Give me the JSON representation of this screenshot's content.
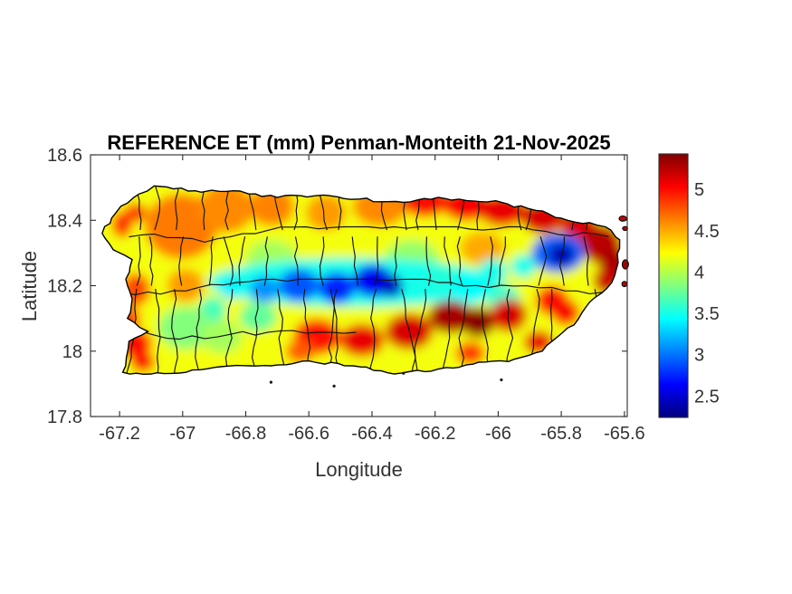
{
  "chart_data": {
    "type": "heatmap",
    "title": "REFERENCE ET (mm) Penman-Monteith 21-Nov-2025",
    "xlabel": "Longitude",
    "ylabel": "Latitude",
    "region": "Puerto Rico",
    "xlim": [
      -67.292,
      -65.591
    ],
    "ylim": [
      17.8,
      18.6
    ],
    "x_tick_values": [
      -67.2,
      -67,
      -66.8,
      -66.6,
      -66.4,
      -66.2,
      -66,
      -65.8,
      -65.6
    ],
    "x_tick_labels": [
      "-67.2",
      "-67",
      "-66.8",
      "-66.6",
      "-66.4",
      "-66.2",
      "-66",
      "-65.8",
      "-65.6"
    ],
    "y_tick_values": [
      17.8,
      18,
      18.2,
      18.4,
      18.6
    ],
    "y_tick_labels": [
      "17.8",
      "18",
      "18.2",
      "18.4",
      "18.6"
    ],
    "colorbar": {
      "colormap": "jet",
      "vmin": 2.24,
      "vmax": 5.43,
      "ticks": [
        2.5,
        3,
        3.5,
        4,
        4.5,
        5
      ],
      "tick_labels": [
        "2.5",
        "3",
        "3.5",
        "4",
        "4.5",
        "5"
      ]
    },
    "base_et": 4.2,
    "coastline": [
      [
        -67.255,
        18.36
      ],
      [
        -67.21,
        18.425
      ],
      [
        -67.155,
        18.47
      ],
      [
        -67.09,
        18.505
      ],
      [
        -66.96,
        18.49
      ],
      [
        -66.84,
        18.49
      ],
      [
        -66.7,
        18.47
      ],
      [
        -66.58,
        18.475
      ],
      [
        -66.44,
        18.465
      ],
      [
        -66.3,
        18.455
      ],
      [
        -66.19,
        18.47
      ],
      [
        -66.1,
        18.46
      ],
      [
        -65.99,
        18.455
      ],
      [
        -65.88,
        18.43
      ],
      [
        -65.78,
        18.4
      ],
      [
        -65.66,
        18.38
      ],
      [
        -65.615,
        18.34
      ],
      [
        -65.62,
        18.27
      ],
      [
        -65.64,
        18.21
      ],
      [
        -65.71,
        18.15
      ],
      [
        -65.76,
        18.08
      ],
      [
        -65.86,
        18.0
      ],
      [
        -65.95,
        17.975
      ],
      [
        -66.08,
        17.96
      ],
      [
        -66.19,
        17.945
      ],
      [
        -66.33,
        17.93
      ],
      [
        -66.46,
        17.955
      ],
      [
        -66.6,
        17.97
      ],
      [
        -66.72,
        17.955
      ],
      [
        -66.9,
        17.95
      ],
      [
        -66.99,
        17.935
      ],
      [
        -67.1,
        17.93
      ],
      [
        -67.19,
        17.935
      ],
      [
        -67.17,
        18.03
      ],
      [
        -67.11,
        18.06
      ],
      [
        -67.175,
        18.1
      ],
      [
        -67.16,
        18.16
      ],
      [
        -67.18,
        18.22
      ],
      [
        -67.16,
        18.28
      ],
      [
        -67.22,
        18.31
      ]
    ],
    "et_blobs": [
      {
        "lon": -67.005,
        "lat": 18.381,
        "rx": 0.115,
        "ry": 0.1,
        "et": 4.65
      },
      {
        "lon": -66.862,
        "lat": 18.437,
        "rx": 0.087,
        "ry": 0.075,
        "et": 4.6
      },
      {
        "lon": -66.718,
        "lat": 18.442,
        "rx": 0.072,
        "ry": 0.06,
        "et": 4.62
      },
      {
        "lon": -66.546,
        "lat": 18.423,
        "rx": 0.063,
        "ry": 0.055,
        "et": 4.55
      },
      {
        "lon": -66.374,
        "lat": 18.442,
        "rx": 0.087,
        "ry": 0.06,
        "et": 4.6
      },
      {
        "lon": -66.231,
        "lat": 18.459,
        "rx": 0.07,
        "ry": 0.05,
        "et": 5.0
      },
      {
        "lon": -66.102,
        "lat": 18.448,
        "rx": 0.075,
        "ry": 0.05,
        "et": 5.05
      },
      {
        "lon": -65.987,
        "lat": 18.431,
        "rx": 0.075,
        "ry": 0.05,
        "et": 5.1
      },
      {
        "lon": -65.858,
        "lat": 18.409,
        "rx": 0.07,
        "ry": 0.05,
        "et": 5.15
      },
      {
        "lon": -65.743,
        "lat": 18.381,
        "rx": 0.058,
        "ry": 0.05,
        "et": 5.15
      },
      {
        "lon": -65.672,
        "lat": 18.326,
        "rx": 0.063,
        "ry": 0.06,
        "et": 5.25
      },
      {
        "lon": -65.628,
        "lat": 18.257,
        "rx": 0.052,
        "ry": 0.06,
        "et": 5.3
      },
      {
        "lon": -65.657,
        "lat": 18.215,
        "rx": 0.04,
        "ry": 0.04,
        "et": 5.2
      },
      {
        "lon": -66.718,
        "lat": 18.284,
        "rx": 0.08,
        "ry": 0.055,
        "et": 3.95
      },
      {
        "lon": -66.274,
        "lat": 18.284,
        "rx": 0.085,
        "ry": 0.055,
        "et": 3.9
      },
      {
        "lon": -66.05,
        "lat": 18.315,
        "rx": 0.07,
        "ry": 0.05,
        "et": 4.5
      },
      {
        "lon": -66.46,
        "lat": 18.21,
        "rx": 0.46,
        "ry": 0.075,
        "et": 3.5
      },
      {
        "lon": -66.174,
        "lat": 18.229,
        "rx": 0.05,
        "ry": 0.04,
        "et": 3.55
      },
      {
        "lon": -66.088,
        "lat": 18.193,
        "rx": 0.063,
        "ry": 0.05,
        "et": 3.45
      },
      {
        "lon": -65.984,
        "lat": 18.16,
        "rx": 0.052,
        "ry": 0.045,
        "et": 3.6
      },
      {
        "lon": -66.016,
        "lat": 18.243,
        "rx": 0.045,
        "ry": 0.04,
        "et": 3.5
      },
      {
        "lon": -65.92,
        "lat": 18.26,
        "rx": 0.04,
        "ry": 0.035,
        "et": 3.5
      },
      {
        "lon": -66.761,
        "lat": 18.105,
        "rx": 0.058,
        "ry": 0.045,
        "et": 3.75
      },
      {
        "lon": -66.905,
        "lat": 18.127,
        "rx": 0.043,
        "ry": 0.04,
        "et": 3.65
      },
      {
        "lon": -66.632,
        "lat": 18.201,
        "rx": 0.063,
        "ry": 0.05,
        "et": 2.9
      },
      {
        "lon": -66.741,
        "lat": 18.188,
        "rx": 0.046,
        "ry": 0.04,
        "et": 3.1
      },
      {
        "lon": -66.847,
        "lat": 18.193,
        "rx": 0.035,
        "ry": 0.035,
        "et": 3.4
      },
      {
        "lon": -66.512,
        "lat": 18.193,
        "rx": 0.058,
        "ry": 0.048,
        "et": 2.75
      },
      {
        "lon": -66.397,
        "lat": 18.215,
        "rx": 0.063,
        "ry": 0.05,
        "et": 2.6
      },
      {
        "lon": -66.34,
        "lat": 18.199,
        "rx": 0.038,
        "ry": 0.035,
        "et": 2.45
      },
      {
        "lon": -65.81,
        "lat": 18.3,
        "rx": 0.085,
        "ry": 0.06,
        "et": 2.95
      },
      {
        "lon": -65.8,
        "lat": 18.295,
        "rx": 0.042,
        "ry": 0.035,
        "et": 2.4
      },
      {
        "lon": -66.991,
        "lat": 18.071,
        "rx": 0.087,
        "ry": 0.065,
        "et": 3.85
      },
      {
        "lon": -66.876,
        "lat": 18.044,
        "rx": 0.063,
        "ry": 0.05,
        "et": 3.95
      },
      {
        "lon": -66.991,
        "lat": 18.201,
        "rx": 0.058,
        "ry": 0.05,
        "et": 4.55
      },
      {
        "lon": -67.149,
        "lat": 18.188,
        "rx": 0.046,
        "ry": 0.05,
        "et": 4.8
      },
      {
        "lon": -67.172,
        "lat": 18.099,
        "rx": 0.038,
        "ry": 0.04,
        "et": 4.85
      },
      {
        "lon": -67.149,
        "lat": 18.022,
        "rx": 0.052,
        "ry": 0.045,
        "et": 5.0
      },
      {
        "lon": -67.126,
        "lat": 17.966,
        "rx": 0.038,
        "ry": 0.03,
        "et": 5.05
      },
      {
        "lon": -67.192,
        "lat": 18.387,
        "rx": 0.032,
        "ry": 0.04,
        "et": 4.9
      },
      {
        "lon": -67.149,
        "lat": 18.423,
        "rx": 0.035,
        "ry": 0.03,
        "et": 4.85
      },
      {
        "lon": -66.575,
        "lat": 18.044,
        "rx": 0.075,
        "ry": 0.055,
        "et": 5.0
      },
      {
        "lon": -66.432,
        "lat": 18.033,
        "rx": 0.07,
        "ry": 0.05,
        "et": 5.1
      },
      {
        "lon": -66.283,
        "lat": 18.06,
        "rx": 0.075,
        "ry": 0.055,
        "et": 5.15
      },
      {
        "lon": -66.151,
        "lat": 18.105,
        "rx": 0.07,
        "ry": 0.05,
        "et": 5.3
      },
      {
        "lon": -66.064,
        "lat": 18.088,
        "rx": 0.052,
        "ry": 0.045,
        "et": 5.4
      },
      {
        "lon": -65.967,
        "lat": 18.11,
        "rx": 0.058,
        "ry": 0.05,
        "et": 5.15
      },
      {
        "lon": -65.829,
        "lat": 18.154,
        "rx": 0.052,
        "ry": 0.045,
        "et": 5.0
      },
      {
        "lon": -65.786,
        "lat": 18.118,
        "rx": 0.043,
        "ry": 0.04,
        "et": 5.05
      },
      {
        "lon": -65.872,
        "lat": 18.027,
        "rx": 0.046,
        "ry": 0.035,
        "et": 5.1
      },
      {
        "lon": -66.088,
        "lat": 17.994,
        "rx": 0.046,
        "ry": 0.035,
        "et": 4.85
      },
      {
        "lon": -66.627,
        "lat": 17.999,
        "rx": 0.046,
        "ry": 0.035,
        "et": 4.75
      }
    ],
    "islets": [
      {
        "lon": -65.605,
        "lat": 18.405,
        "rx": 0.012,
        "ry": 0.008,
        "et": 5.2
      },
      {
        "lon": -65.598,
        "lat": 18.375,
        "rx": 0.008,
        "ry": 0.006,
        "et": 5.25
      },
      {
        "lon": -65.597,
        "lat": 18.265,
        "rx": 0.01,
        "ry": 0.014,
        "et": 5.3
      },
      {
        "lon": -65.6,
        "lat": 18.205,
        "rx": 0.008,
        "ry": 0.008,
        "et": 5.25
      }
    ],
    "cays": [
      [
        -66.72,
        17.905
      ],
      [
        -66.52,
        17.893
      ],
      [
        -66.3,
        17.932
      ],
      [
        -65.99,
        17.912
      ]
    ],
    "boundaries": {
      "columns": 20,
      "rows": [
        {
          "lat": 18.35,
          "lon0": -67.17,
          "lon1": -65.64
        },
        {
          "lat": 18.19,
          "lon0": -67.19,
          "lon1": -65.66
        },
        {
          "lat": 18.05,
          "lon0": -67.17,
          "lon1": -66.42
        }
      ]
    },
    "grid": false,
    "legend_position": "colorbar-right"
  }
}
